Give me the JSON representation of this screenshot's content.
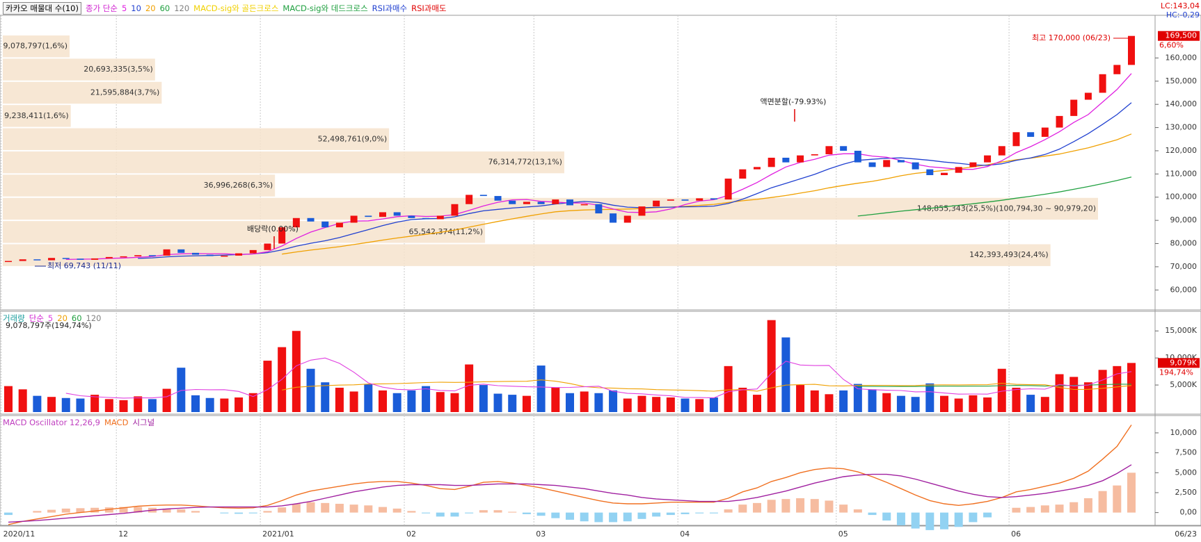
{
  "chart_data": [
    {
      "type": "candlestick",
      "title": "카카오 매물대 수(10)",
      "legend_label": "종가 단순",
      "legend_color": "#d020d0",
      "ma": [
        {
          "name": "5",
          "color": "#e020e0"
        },
        {
          "name": "10",
          "color": "#2040d0"
        },
        {
          "name": "20",
          "color": "#f0a000"
        },
        {
          "name": "60",
          "color": "#20a040"
        },
        {
          "name": "120",
          "color": "#808080"
        }
      ],
      "signals": [
        {
          "name": "MACD-sig와 골든크로스",
          "color": "#f0d000"
        },
        {
          "name": "MACD-sig와 데드크로스",
          "color": "#20a040"
        },
        {
          "name": "RSI과매수",
          "color": "#1f3fd0"
        },
        {
          "name": "RSI과매도",
          "color": "#e00000"
        }
      ],
      "up_color": "#f01010",
      "down_color": "#1a5cd8",
      "profile_color": "#f6e3cc",
      "categories": [
        "2020/11",
        null,
        null,
        null,
        null,
        null,
        null,
        null,
        "12",
        null,
        null,
        null,
        null,
        null,
        null,
        null,
        null,
        null,
        "2021/01",
        null,
        null,
        null,
        null,
        null,
        null,
        null,
        null,
        null,
        "02",
        null,
        null,
        null,
        null,
        null,
        null,
        null,
        null,
        "03",
        null,
        null,
        null,
        null,
        null,
        null,
        null,
        null,
        null,
        "04",
        null,
        null,
        null,
        null,
        null,
        null,
        null,
        null,
        null,
        null,
        "05",
        null,
        null,
        null,
        null,
        null,
        null,
        null,
        null,
        null,
        null,
        null,
        "06",
        null,
        null,
        null,
        null,
        null,
        null,
        null,
        "06/23"
      ],
      "closes": [
        72500,
        73200,
        72800,
        73800,
        73500,
        73000,
        73600,
        74200,
        74500,
        75000,
        74800,
        77500,
        76000,
        75200,
        74600,
        74800,
        75800,
        77200,
        80000,
        87000,
        91000,
        89500,
        87000,
        89000,
        92000,
        91500,
        93500,
        92000,
        91000,
        90500,
        92000,
        97000,
        101000,
        100500,
        98500,
        97000,
        98000,
        97000,
        99000,
        96500,
        97000,
        93000,
        89000,
        92000,
        96000,
        98500,
        99000,
        98500,
        99500,
        99000,
        108000,
        112000,
        113000,
        117000,
        115000,
        118000,
        118500,
        122000,
        120000,
        115000,
        113000,
        116000,
        115000,
        112000,
        109500,
        110500,
        113000,
        115000,
        118000,
        122000,
        128000,
        126000,
        130000,
        135000,
        142000,
        145000,
        153000,
        157000,
        169500
      ],
      "profile": [
        {
          "low": 160000,
          "high": 170000,
          "volume": 9078797,
          "label": "9,078,797(1,6%)"
        },
        {
          "low": 150000,
          "high": 160000,
          "volume": 20693335,
          "label": "20,693,335(3,5%)"
        },
        {
          "low": 140000,
          "high": 150000,
          "volume": 21595884,
          "label": "21,595,884(3,7%)"
        },
        {
          "low": 130000,
          "high": 140000,
          "volume": 9238411,
          "label": "9,238,411(1,6%)"
        },
        {
          "low": 120000,
          "high": 130000,
          "volume": 52498761,
          "label": "52,498,761(9,0%)"
        },
        {
          "low": 110000,
          "high": 120000,
          "volume": 76314772,
          "label": "76,314,772(13,1%)"
        },
        {
          "low": 100000,
          "high": 110000,
          "volume": 36996268,
          "label": "36,996,268(6,3%)"
        },
        {
          "low": 90000,
          "high": 100000,
          "volume": 148855343,
          "label": "148,855,343(25,5%)(100,794,30 ~ 90,979,20)"
        },
        {
          "low": 80000,
          "high": 90000,
          "volume": 65542374,
          "label": "65,542,374(11,2%)"
        },
        {
          "low": 70000,
          "high": 80000,
          "volume": 142393493,
          "label": "142,393,493(24,4%)"
        }
      ],
      "annotations": {
        "max": "최고 170,000 (06/23)",
        "min": "최저 69,743 (11/11)",
        "split": "액면분할(-79.93%)",
        "dividend": "배당락(0.00%)"
      },
      "last_label": "169,500",
      "change_label": "6,60%",
      "lc": "LC:143,04",
      "hc": "HC:-0,29",
      "ylim": [
        52000,
        176000
      ],
      "yticks": [
        {
          "value": 60000,
          "label": "60,000"
        },
        {
          "value": 70000,
          "label": "70,000"
        },
        {
          "value": 80000,
          "label": "80,000"
        },
        {
          "value": 90000,
          "label": "90,000"
        },
        {
          "value": 100000,
          "label": "100,000"
        },
        {
          "value": 110000,
          "label": "110,000"
        },
        {
          "value": 120000,
          "label": "120,000"
        },
        {
          "value": 130000,
          "label": "130,000"
        },
        {
          "value": 140000,
          "label": "140,000"
        },
        {
          "value": 150000,
          "label": "150,000"
        },
        {
          "value": 160000,
          "label": "160,000"
        }
      ]
    },
    {
      "type": "bar",
      "title": "거래량",
      "title_color": "#20a0a0",
      "legend_label": "단순",
      "legend_color": "#d020d0",
      "ma": [
        {
          "name": "5",
          "color": "#e040e0"
        },
        {
          "name": "20",
          "color": "#f0a000"
        },
        {
          "name": "60",
          "color": "#20a040"
        },
        {
          "name": "120",
          "color": "#808080"
        }
      ],
      "info": "9,078,797주(194,74%)",
      "last_label": "9,079K",
      "last_pct": "194,74%",
      "values": [
        4800,
        4200,
        3000,
        2800,
        2600,
        2500,
        3200,
        2400,
        2200,
        2900,
        2400,
        4300,
        8200,
        3100,
        2600,
        2500,
        2700,
        3500,
        9500,
        12000,
        15000,
        8000,
        5500,
        4500,
        3800,
        5200,
        4000,
        3500,
        4000,
        4800,
        3700,
        3500,
        8800,
        5000,
        3400,
        3200,
        3000,
        8600,
        4500,
        3500,
        3800,
        3500,
        4000,
        2500,
        3000,
        2800,
        2700,
        2500,
        2400,
        2700,
        8500,
        4500,
        3200,
        17000,
        13800,
        5000,
        4000,
        3300,
        4000,
        5200,
        4200,
        3500,
        3000,
        2800,
        5300,
        3000,
        2500,
        3100,
        2700,
        8000,
        4500,
        3200,
        2800,
        7000,
        6500,
        5500,
        7800,
        8500,
        9079
      ],
      "ylim": [
        0,
        17600
      ],
      "yticks": [
        {
          "value": 5000,
          "label": "5,000K"
        },
        {
          "value": 10000,
          "label": "10,000K"
        },
        {
          "value": 15000,
          "label": "15,000K"
        }
      ]
    },
    {
      "type": "line",
      "title": "MACD Oscillator 12,26,9",
      "title_color": "#c040c0",
      "pos_color": "#f6bca0",
      "neg_color": "#92d2f2",
      "series": [
        {
          "name": "MACD",
          "color": "#f07020",
          "values": [
            -1500,
            -1100,
            -800,
            -500,
            -200,
            0,
            200,
            400,
            600,
            800,
            900,
            950,
            950,
            850,
            700,
            600,
            550,
            600,
            900,
            1500,
            2200,
            2700,
            3000,
            3300,
            3600,
            3800,
            3900,
            3900,
            3700,
            3400,
            3000,
            2900,
            3300,
            3800,
            3900,
            3700,
            3400,
            3100,
            2700,
            2300,
            1900,
            1500,
            1200,
            1100,
            1100,
            1200,
            1300,
            1300,
            1300,
            1300,
            1800,
            2600,
            3100,
            3900,
            4400,
            5000,
            5400,
            5600,
            5500,
            5100,
            4500,
            3800,
            3000,
            2200,
            1500,
            1100,
            900,
            1100,
            1400,
            1900,
            2600,
            2900,
            3300,
            3700,
            4300,
            5200,
            6700,
            8300,
            11000
          ]
        },
        {
          "name": "시그널",
          "color": "#a020a0",
          "values": [
            -1200,
            -1100,
            -1000,
            -850,
            -700,
            -550,
            -400,
            -250,
            -100,
            100,
            300,
            450,
            550,
            650,
            700,
            700,
            700,
            700,
            700,
            850,
            1100,
            1400,
            1800,
            2200,
            2600,
            2900,
            3200,
            3400,
            3500,
            3500,
            3500,
            3400,
            3400,
            3500,
            3600,
            3600,
            3600,
            3500,
            3400,
            3200,
            3000,
            2700,
            2400,
            2200,
            1900,
            1700,
            1600,
            1500,
            1400,
            1400,
            1400,
            1600,
            1900,
            2300,
            2700,
            3200,
            3700,
            4100,
            4500,
            4700,
            4800,
            4800,
            4600,
            4200,
            3700,
            3200,
            2700,
            2300,
            2000,
            1900,
            2000,
            2200,
            2400,
            2700,
            3000,
            3400,
            4000,
            4900,
            6000
          ]
        }
      ],
      "ylim": [
        -1600,
        12000
      ],
      "yticks": [
        {
          "value": 0,
          "label": "0,00"
        },
        {
          "value": 2500,
          "label": "2,500"
        },
        {
          "value": 5000,
          "label": "5,000"
        },
        {
          "value": 7500,
          "label": "7,500"
        },
        {
          "value": 10000,
          "label": "10,000"
        }
      ]
    }
  ]
}
